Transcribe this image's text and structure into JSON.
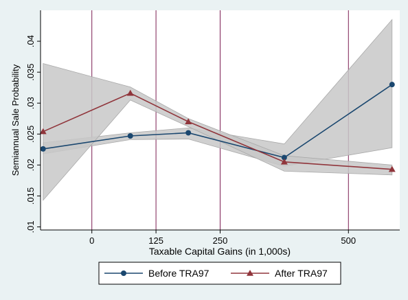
{
  "chart_data": {
    "type": "line",
    "title": "",
    "xlabel": "Taxable Capital Gains (in 1,000s)",
    "ylabel": "Semiannual Sale Probability",
    "xlim": [
      -100,
      600
    ],
    "ylim": [
      0.0095,
      0.045
    ],
    "xticks": [
      0,
      125,
      250,
      500
    ],
    "yticks": [
      0.01,
      0.015,
      0.02,
      0.025,
      0.03,
      0.035,
      0.04
    ],
    "ytick_labels": [
      ".01",
      ".015",
      ".02",
      ".025",
      ".03",
      ".035",
      ".04"
    ],
    "vlines": [
      0,
      125,
      250,
      500
    ],
    "legend_position": "bottom",
    "grid": false,
    "series": [
      {
        "name": "Before TRA97",
        "marker": "circle",
        "color": "#1a476f",
        "band_color": "#c8c8c8",
        "x": [
          -95,
          75,
          188,
          375,
          585
        ],
        "values": [
          0.0226,
          0.0247,
          0.0252,
          0.0212,
          0.033
        ],
        "ci_lower": [
          0.0218,
          0.0241,
          0.0242,
          0.0198,
          0.0228
        ],
        "ci_upper": [
          0.0236,
          0.0252,
          0.026,
          0.0234,
          0.0435
        ]
      },
      {
        "name": "After TRA97",
        "marker": "triangle",
        "color": "#90353b",
        "band_color": "#c8c8c8",
        "x": [
          -95,
          75,
          188,
          375,
          585
        ],
        "values": [
          0.0254,
          0.0316,
          0.027,
          0.0205,
          0.0193
        ],
        "ci_lower": [
          0.0143,
          0.0305,
          0.0262,
          0.019,
          0.0184
        ],
        "ci_upper": [
          0.0364,
          0.0326,
          0.0275,
          0.0215,
          0.02
        ]
      }
    ]
  }
}
